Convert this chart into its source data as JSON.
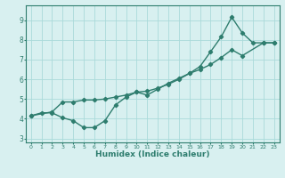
{
  "title": "",
  "xlabel": "Humidex (Indice chaleur)",
  "ylabel": "",
  "xlim": [
    -0.5,
    23.5
  ],
  "ylim": [
    2.8,
    9.75
  ],
  "xticks": [
    0,
    1,
    2,
    3,
    4,
    5,
    6,
    7,
    8,
    9,
    10,
    11,
    12,
    13,
    14,
    15,
    16,
    17,
    18,
    19,
    20,
    21,
    22,
    23
  ],
  "yticks": [
    3,
    4,
    5,
    6,
    7,
    8,
    9
  ],
  "line_color": "#2e7d6e",
  "marker": "D",
  "markersize": 2.2,
  "linewidth": 1.0,
  "bg_color": "#d8f0f0",
  "grid_color": "#aadada",
  "line1_x": [
    0,
    1,
    2,
    3,
    4,
    5,
    6,
    7,
    8,
    9,
    10,
    11,
    12,
    13,
    14,
    15,
    16,
    17,
    18,
    19,
    20,
    21,
    22,
    23
  ],
  "line1_y": [
    4.15,
    4.3,
    4.3,
    4.05,
    3.9,
    3.55,
    3.55,
    3.9,
    4.7,
    5.1,
    5.35,
    5.2,
    5.5,
    5.8,
    6.05,
    6.3,
    6.65,
    7.4,
    8.15,
    9.15,
    8.35,
    7.85,
    7.85,
    7.85
  ],
  "line2_x": [
    0,
    2,
    3,
    4,
    5,
    6,
    7,
    8,
    9,
    10,
    11,
    12,
    13,
    14,
    15,
    16,
    17,
    18,
    19,
    20,
    22,
    23
  ],
  "line2_y": [
    4.15,
    4.35,
    4.85,
    4.85,
    4.95,
    4.95,
    5.0,
    5.1,
    5.2,
    5.35,
    5.4,
    5.55,
    5.75,
    6.0,
    6.3,
    6.5,
    6.75,
    7.1,
    7.5,
    7.2,
    7.85,
    7.85
  ]
}
